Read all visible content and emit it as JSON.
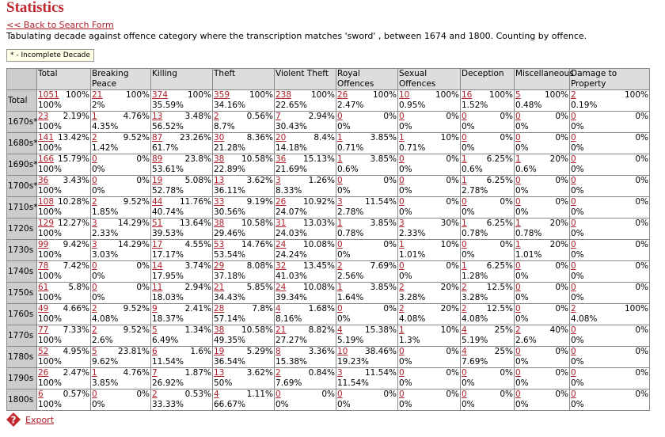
{
  "header": {
    "title": "Statistics",
    "back_link": "<< Back to Search Form",
    "description": "Tabulating decade against offence category where the transcription matches 'sword' , between 1674 and 1800. Counting by offence.",
    "legend": "* - Incomplete Decade"
  },
  "table": {
    "columns": [
      "Total",
      "Breaking Peace",
      "Killing",
      "Theft",
      "Violent Theft",
      "Royal Offences",
      "Sexual Offences",
      "Deception",
      "Miscellaneous",
      "Damage to Property"
    ],
    "rows": [
      {
        "label": "Total",
        "cells": [
          [
            1051,
            "100%",
            "100%"
          ],
          [
            21,
            "100%",
            "2%"
          ],
          [
            374,
            "100%",
            "35.59%"
          ],
          [
            359,
            "100%",
            "34.16%"
          ],
          [
            238,
            "100%",
            "22.65%"
          ],
          [
            26,
            "100%",
            "2.47%"
          ],
          [
            10,
            "100%",
            "0.95%"
          ],
          [
            16,
            "100%",
            "1.52%"
          ],
          [
            5,
            "100%",
            "0.48%"
          ],
          [
            2,
            "100%",
            "0.19%"
          ]
        ]
      },
      {
        "label": "1670s*",
        "cells": [
          [
            23,
            "2.19%",
            "100%"
          ],
          [
            1,
            "4.76%",
            "4.35%"
          ],
          [
            13,
            "3.48%",
            "56.52%"
          ],
          [
            2,
            "0.56%",
            "8.7%"
          ],
          [
            7,
            "2.94%",
            "30.43%"
          ],
          [
            0,
            "0%",
            "0%"
          ],
          [
            0,
            "0%",
            "0%"
          ],
          [
            0,
            "0%",
            "0%"
          ],
          [
            0,
            "0%",
            "0%"
          ],
          [
            0,
            "0%",
            "0%"
          ]
        ]
      },
      {
        "label": "1680s*",
        "cells": [
          [
            141,
            "13.42%",
            "100%"
          ],
          [
            2,
            "9.52%",
            "1.42%"
          ],
          [
            87,
            "23.26%",
            "61.7%"
          ],
          [
            30,
            "8.36%",
            "21.28%"
          ],
          [
            20,
            "8.4%",
            "14.18%"
          ],
          [
            1,
            "3.85%",
            "0.71%"
          ],
          [
            1,
            "10%",
            "0.71%"
          ],
          [
            0,
            "0%",
            "0%"
          ],
          [
            0,
            "0%",
            "0%"
          ],
          [
            0,
            "0%",
            "0%"
          ]
        ]
      },
      {
        "label": "1690s*",
        "cells": [
          [
            166,
            "15.79%",
            "100%"
          ],
          [
            0,
            "0%",
            "0%"
          ],
          [
            89,
            "23.8%",
            "53.61%"
          ],
          [
            38,
            "10.58%",
            "22.89%"
          ],
          [
            36,
            "15.13%",
            "21.69%"
          ],
          [
            1,
            "3.85%",
            "0.6%"
          ],
          [
            0,
            "0%",
            "0%"
          ],
          [
            1,
            "6.25%",
            "0.6%"
          ],
          [
            1,
            "20%",
            "0.6%"
          ],
          [
            0,
            "0%",
            "0%"
          ]
        ]
      },
      {
        "label": "1700s*",
        "cells": [
          [
            36,
            "3.43%",
            "100%"
          ],
          [
            0,
            "0%",
            "0%"
          ],
          [
            19,
            "5.08%",
            "52.78%"
          ],
          [
            13,
            "3.62%",
            "36.11%"
          ],
          [
            3,
            "1.26%",
            "8.33%"
          ],
          [
            0,
            "0%",
            "0%"
          ],
          [
            0,
            "0%",
            "0%"
          ],
          [
            1,
            "6.25%",
            "2.78%"
          ],
          [
            0,
            "0%",
            "0%"
          ],
          [
            0,
            "0%",
            "0%"
          ]
        ]
      },
      {
        "label": "1710s*",
        "cells": [
          [
            108,
            "10.28%",
            "100%"
          ],
          [
            2,
            "9.52%",
            "1.85%"
          ],
          [
            44,
            "11.76%",
            "40.74%"
          ],
          [
            33,
            "9.19%",
            "30.56%"
          ],
          [
            26,
            "10.92%",
            "24.07%"
          ],
          [
            3,
            "11.54%",
            "2.78%"
          ],
          [
            0,
            "0%",
            "0%"
          ],
          [
            0,
            "0%",
            "0%"
          ],
          [
            0,
            "0%",
            "0%"
          ],
          [
            0,
            "0%",
            "0%"
          ]
        ]
      },
      {
        "label": "1720s",
        "cells": [
          [
            129,
            "12.27%",
            "100%"
          ],
          [
            3,
            "14.29%",
            "2.33%"
          ],
          [
            51,
            "13.64%",
            "39.53%"
          ],
          [
            38,
            "10.58%",
            "29.46%"
          ],
          [
            31,
            "13.03%",
            "24.03%"
          ],
          [
            1,
            "3.85%",
            "0.78%"
          ],
          [
            3,
            "30%",
            "2.33%"
          ],
          [
            1,
            "6.25%",
            "0.78%"
          ],
          [
            1,
            "20%",
            "0.78%"
          ],
          [
            0,
            "0%",
            "0%"
          ]
        ]
      },
      {
        "label": "1730s",
        "cells": [
          [
            99,
            "9.42%",
            "100%"
          ],
          [
            3,
            "14.29%",
            "3.03%"
          ],
          [
            17,
            "4.55%",
            "17.17%"
          ],
          [
            53,
            "14.76%",
            "53.54%"
          ],
          [
            24,
            "10.08%",
            "24.24%"
          ],
          [
            0,
            "0%",
            "0%"
          ],
          [
            1,
            "10%",
            "1.01%"
          ],
          [
            0,
            "0%",
            "0%"
          ],
          [
            1,
            "20%",
            "1.01%"
          ],
          [
            0,
            "0%",
            "0%"
          ]
        ]
      },
      {
        "label": "1740s",
        "cells": [
          [
            78,
            "7.42%",
            "100%"
          ],
          [
            0,
            "0%",
            "0%"
          ],
          [
            14,
            "3.74%",
            "17.95%"
          ],
          [
            29,
            "8.08%",
            "37.18%"
          ],
          [
            32,
            "13.45%",
            "41.03%"
          ],
          [
            2,
            "7.69%",
            "2.56%"
          ],
          [
            0,
            "0%",
            "0%"
          ],
          [
            1,
            "6.25%",
            "1.28%"
          ],
          [
            0,
            "0%",
            "0%"
          ],
          [
            0,
            "0%",
            "0%"
          ]
        ]
      },
      {
        "label": "1750s",
        "cells": [
          [
            61,
            "5.8%",
            "100%"
          ],
          [
            0,
            "0%",
            "0%"
          ],
          [
            11,
            "2.94%",
            "18.03%"
          ],
          [
            21,
            "5.85%",
            "34.43%"
          ],
          [
            24,
            "10.08%",
            "39.34%"
          ],
          [
            1,
            "3.85%",
            "1.64%"
          ],
          [
            2,
            "20%",
            "3.28%"
          ],
          [
            2,
            "12.5%",
            "3.28%"
          ],
          [
            0,
            "0%",
            "0%"
          ],
          [
            0,
            "0%",
            "0%"
          ]
        ]
      },
      {
        "label": "1760s",
        "cells": [
          [
            49,
            "4.66%",
            "100%"
          ],
          [
            2,
            "9.52%",
            "4.08%"
          ],
          [
            9,
            "2.41%",
            "18.37%"
          ],
          [
            28,
            "7.8%",
            "57.14%"
          ],
          [
            4,
            "1.68%",
            "8.16%"
          ],
          [
            0,
            "0%",
            "0%"
          ],
          [
            2,
            "20%",
            "4.08%"
          ],
          [
            2,
            "12.5%",
            "4.08%"
          ],
          [
            0,
            "0%",
            "0%"
          ],
          [
            2,
            "100%",
            "4.08%"
          ]
        ]
      },
      {
        "label": "1770s",
        "cells": [
          [
            77,
            "7.33%",
            "100%"
          ],
          [
            2,
            "9.52%",
            "2.6%"
          ],
          [
            5,
            "1.34%",
            "6.49%"
          ],
          [
            38,
            "10.58%",
            "49.35%"
          ],
          [
            21,
            "8.82%",
            "27.27%"
          ],
          [
            4,
            "15.38%",
            "5.19%"
          ],
          [
            1,
            "10%",
            "1.3%"
          ],
          [
            4,
            "25%",
            "5.19%"
          ],
          [
            2,
            "40%",
            "2.6%"
          ],
          [
            0,
            "0%",
            "0%"
          ]
        ]
      },
      {
        "label": "1780s",
        "cells": [
          [
            52,
            "4.95%",
            "100%"
          ],
          [
            5,
            "23.81%",
            "9.62%"
          ],
          [
            6,
            "1.6%",
            "11.54%"
          ],
          [
            19,
            "5.29%",
            "36.54%"
          ],
          [
            8,
            "3.36%",
            "15.38%"
          ],
          [
            10,
            "38.46%",
            "19.23%"
          ],
          [
            0,
            "0%",
            "0%"
          ],
          [
            4,
            "25%",
            "7.69%"
          ],
          [
            0,
            "0%",
            "0%"
          ],
          [
            0,
            "0%",
            "0%"
          ]
        ]
      },
      {
        "label": "1790s",
        "cells": [
          [
            26,
            "2.47%",
            "100%"
          ],
          [
            1,
            "4.76%",
            "3.85%"
          ],
          [
            7,
            "1.87%",
            "26.92%"
          ],
          [
            13,
            "3.62%",
            "50%"
          ],
          [
            2,
            "0.84%",
            "7.69%"
          ],
          [
            3,
            "11.54%",
            "11.54%"
          ],
          [
            0,
            "0%",
            "0%"
          ],
          [
            0,
            "0%",
            "0%"
          ],
          [
            0,
            "0%",
            "0%"
          ],
          [
            0,
            "0%",
            "0%"
          ]
        ]
      },
      {
        "label": "1800s",
        "cells": [
          [
            6,
            "0.57%",
            "100%"
          ],
          [
            0,
            "0%",
            "0%"
          ],
          [
            2,
            "0.53%",
            "33.33%"
          ],
          [
            4,
            "1.11%",
            "66.67%"
          ],
          [
            0,
            "0%",
            "0%"
          ],
          [
            0,
            "0%",
            "0%"
          ],
          [
            0,
            "0%",
            "0%"
          ],
          [
            0,
            "0%",
            "0%"
          ],
          [
            0,
            "0%",
            "0%"
          ],
          [
            0,
            "0%",
            "0%"
          ]
        ]
      }
    ]
  },
  "footer": {
    "export": "Export"
  }
}
